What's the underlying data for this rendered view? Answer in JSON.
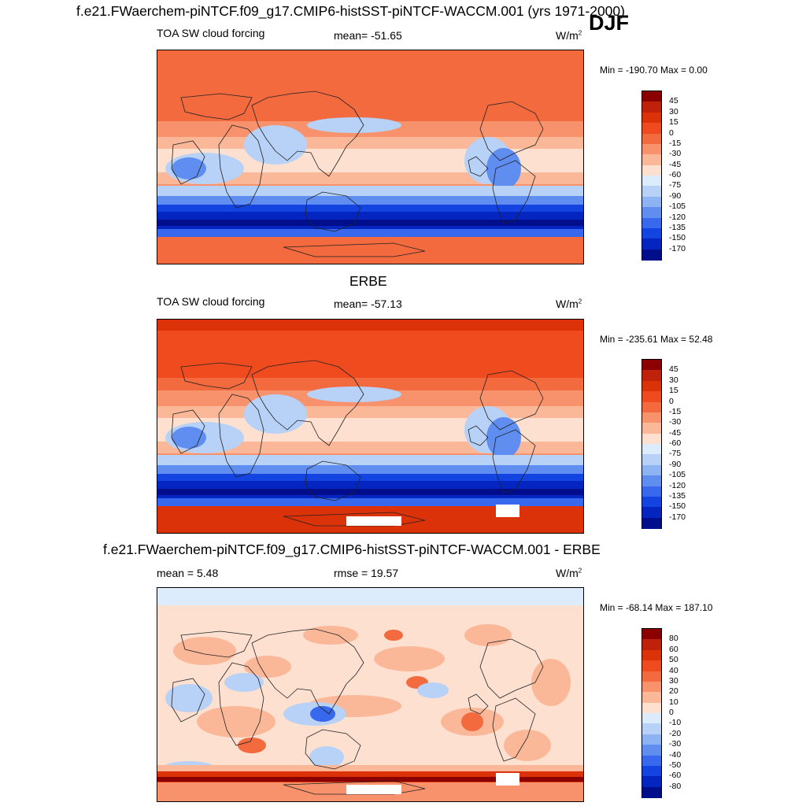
{
  "season": "DJF",
  "panels": [
    {
      "title": "f.e21.FWaerchem-piNTCF.f09_g17.CMIP6-histSST-piNTCF-WACCM.001 (yrs 1971-2000)",
      "left_label": "TOA SW cloud forcing",
      "center_label": "mean= -51.65",
      "units": "W/m",
      "units_sup": "2",
      "minmax": "Min = -190.70 Max =   0.00",
      "map_name": "model-map",
      "levels": [
        "45",
        "30",
        "15",
        "0",
        "-15",
        "-30",
        "-45",
        "-60",
        "-75",
        "-90",
        "-105",
        "-120",
        "-135",
        "-150",
        "-170"
      ],
      "colors": [
        "#8b0000",
        "#c0210a",
        "#dc3209",
        "#f04b1f",
        "#f26a3e",
        "#f7926c",
        "#fbb899",
        "#fde0cf",
        "#dcecfd",
        "#b7d1f7",
        "#8db3f2",
        "#5f8ef0",
        "#3768ee",
        "#1343e1",
        "#0425c0",
        "#000e8c"
      ]
    },
    {
      "title": "ERBE",
      "left_label": "TOA SW cloud forcing",
      "center_label": "mean= -57.13",
      "units": "W/m",
      "units_sup": "2",
      "minmax": "Min = -235.61 Max =  52.48",
      "map_name": "obs-map",
      "levels": [
        "45",
        "30",
        "15",
        "0",
        "-15",
        "-30",
        "-45",
        "-60",
        "-75",
        "-90",
        "-105",
        "-120",
        "-135",
        "-150",
        "-170"
      ],
      "colors": [
        "#8b0000",
        "#c0210a",
        "#dc3209",
        "#f04b1f",
        "#f26a3e",
        "#f7926c",
        "#fbb899",
        "#fde0cf",
        "#dcecfd",
        "#b7d1f7",
        "#8db3f2",
        "#5f8ef0",
        "#3768ee",
        "#1343e1",
        "#0425c0",
        "#000e8c"
      ]
    },
    {
      "title": "f.e21.FWaerchem-piNTCF.f09_g17.CMIP6-histSST-piNTCF-WACCM.001 - ERBE",
      "left_label": "mean =   5.48",
      "center_label": "rmse =  19.57",
      "units": "W/m",
      "units_sup": "2",
      "minmax": "Min = -68.14 Max = 187.10",
      "map_name": "difference-map",
      "levels": [
        "80",
        "60",
        "50",
        "40",
        "30",
        "20",
        "10",
        "0",
        "-10",
        "-20",
        "-30",
        "-40",
        "-50",
        "-60",
        "-80"
      ],
      "colors": [
        "#8b0000",
        "#c0210a",
        "#dc3209",
        "#f04b1f",
        "#f26a3e",
        "#f7926c",
        "#fbb899",
        "#fde0cf",
        "#dcecfd",
        "#b7d1f7",
        "#8db3f2",
        "#5f8ef0",
        "#3768ee",
        "#1343e1",
        "#0425c0",
        "#000e8c"
      ]
    }
  ]
}
